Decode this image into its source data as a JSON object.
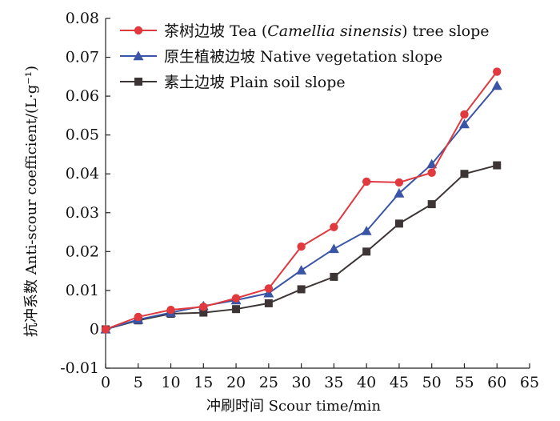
{
  "chart_data": {
    "type": "line",
    "title": "",
    "xlabel": "冲刷时间 Scour time/min",
    "ylabel": "抗冲系数 Anti-scour coefficient/(L·g⁻¹)",
    "xlim": [
      0,
      65
    ],
    "ylim": [
      -0.01,
      0.08
    ],
    "x_ticks": [
      "0",
      "5",
      "10",
      "15",
      "20",
      "25",
      "30",
      "35",
      "40",
      "45",
      "50",
      "55",
      "60",
      "65"
    ],
    "y_ticks": [
      "-0.01",
      "0",
      "0.01",
      "0.02",
      "0.03",
      "0.04",
      "0.05",
      "0.06",
      "0.07",
      "0.08"
    ],
    "grid": false,
    "legend_position": "top-left",
    "x": [
      0,
      5,
      10,
      15,
      20,
      25,
      30,
      35,
      40,
      45,
      50,
      55,
      60
    ],
    "series": [
      {
        "name": "茶树边坡 Tea (Camellia sinensis) tree slope",
        "name_prefix": "茶树边坡 Tea (",
        "name_italic": "Camellia sinensis",
        "name_suffix": ") tree slope",
        "color": "#e0393e",
        "marker": "circle",
        "values": [
          0.0,
          0.0032,
          0.005,
          0.0058,
          0.008,
          0.0105,
          0.0213,
          0.0263,
          0.038,
          0.0378,
          0.0403,
          0.0553,
          0.0663
        ]
      },
      {
        "name": "原生植被边坡 Native vegetation slope",
        "color": "#3a55a5",
        "marker": "triangle",
        "values": [
          0.0,
          0.0025,
          0.0043,
          0.006,
          0.0075,
          0.0093,
          0.0152,
          0.0207,
          0.0253,
          0.035,
          0.0425,
          0.0528,
          0.0627
        ]
      },
      {
        "name": "素土边坡 Plain soil slope",
        "color": "#3d3535",
        "marker": "square",
        "values": [
          0.0,
          0.0023,
          0.004,
          0.0043,
          0.0052,
          0.0067,
          0.0103,
          0.0135,
          0.02,
          0.0272,
          0.0322,
          0.04,
          0.0422
        ]
      }
    ]
  }
}
